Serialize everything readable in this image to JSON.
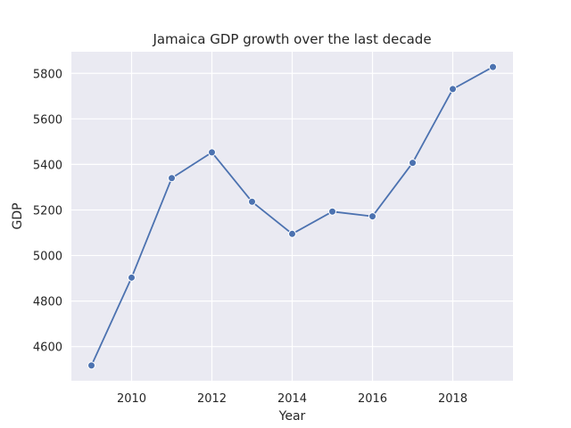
{
  "chart_data": {
    "type": "line",
    "title": "Jamaica GDP growth over the last decade",
    "xlabel": "Year",
    "ylabel": "GDP",
    "x": [
      2009,
      2010,
      2011,
      2012,
      2013,
      2014,
      2015,
      2016,
      2017,
      2018,
      2019
    ],
    "series": [
      {
        "values": [
          4517,
          4903,
          5340,
          5453,
          5236,
          5095,
          5193,
          5172,
          5407,
          5731,
          5828
        ]
      }
    ],
    "xlim": [
      2008.5,
      2019.5
    ],
    "ylim": [
      4450,
      5895
    ],
    "xticks": [
      2010,
      2012,
      2014,
      2016,
      2018
    ],
    "yticks": [
      4600,
      4800,
      5000,
      5200,
      5400,
      5600,
      5800
    ],
    "grid": true,
    "style": "seaborn-darkgrid",
    "colors": {
      "line": "#4c72b0",
      "plot_bg": "#eaeaf2",
      "grid": "#ffffff"
    }
  }
}
